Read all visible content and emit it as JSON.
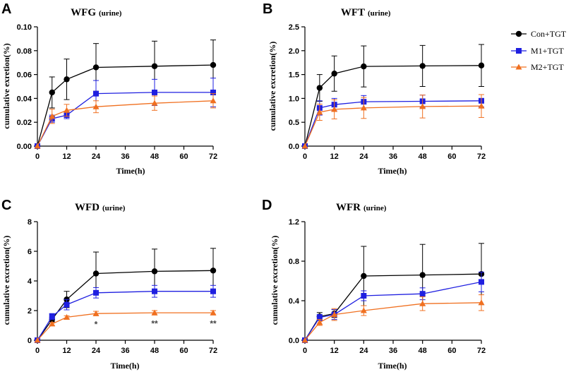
{
  "series_style": {
    "Con+TGT": {
      "color": "#000000",
      "marker": "circle"
    },
    "M1+TGT": {
      "color": "#1f1fe0",
      "marker": "square"
    },
    "M2+TGT": {
      "color": "#f07020",
      "marker": "triangle"
    }
  },
  "legend": {
    "placement": "right-of-panel-B",
    "items": [
      "Con+TGT",
      "M1+TGT",
      "M2+TGT"
    ]
  },
  "chart_data": [
    {
      "panel": "A",
      "type": "line",
      "title": "WFG",
      "title_suffix": "(urine)",
      "xlabel": "Time(h)",
      "ylabel": "cumulative exretion(%)",
      "x": [
        0,
        6,
        12,
        24,
        48,
        72
      ],
      "xticks": [
        "0",
        "12",
        "24",
        "36",
        "48",
        "60",
        "72"
      ],
      "xlim": [
        0,
        72
      ],
      "ylim": [
        0,
        0.1
      ],
      "yticks": [
        "0.00",
        "0.02",
        "0.04",
        "0.06",
        "0.08",
        "0.10"
      ],
      "series": [
        {
          "name": "Con+TGT",
          "values": [
            0,
            0.045,
            0.056,
            0.066,
            0.067,
            0.068
          ],
          "errors": [
            0,
            0.013,
            0.017,
            0.02,
            0.021,
            0.021
          ]
        },
        {
          "name": "M1+TGT",
          "values": [
            0,
            0.023,
            0.026,
            0.044,
            0.045,
            0.045
          ],
          "errors": [
            0,
            0.003,
            0.003,
            0.011,
            0.011,
            0.012
          ]
        },
        {
          "name": "M2+TGT",
          "values": [
            0,
            0.025,
            0.03,
            0.033,
            0.036,
            0.038
          ],
          "errors": [
            0,
            0.006,
            0.005,
            0.005,
            0.006,
            0.006
          ]
        }
      ],
      "annotations": []
    },
    {
      "panel": "B",
      "type": "line",
      "title": "WFT",
      "title_suffix": "(urine)",
      "xlabel": "Time(h)",
      "ylabel": "cumulative excretion(%)",
      "x": [
        0,
        6,
        12,
        24,
        48,
        72
      ],
      "xticks": [
        "0",
        "12",
        "24",
        "36",
        "48",
        "60",
        "72"
      ],
      "xlim": [
        0,
        72
      ],
      "ylim": [
        0,
        2.5
      ],
      "yticks": [
        "0.0",
        "0.5",
        "1.0",
        "1.5",
        "2.0",
        "2.5"
      ],
      "series": [
        {
          "name": "Con+TGT",
          "values": [
            0,
            1.22,
            1.52,
            1.67,
            1.68,
            1.69
          ],
          "errors": [
            0,
            0.28,
            0.37,
            0.43,
            0.43,
            0.44
          ]
        },
        {
          "name": "M1+TGT",
          "values": [
            0,
            0.8,
            0.87,
            0.93,
            0.94,
            0.95
          ],
          "errors": [
            0,
            0.15,
            0.13,
            0.13,
            0.13,
            0.13
          ]
        },
        {
          "name": "M2+TGT",
          "values": [
            0,
            0.71,
            0.77,
            0.8,
            0.83,
            0.84
          ],
          "errors": [
            0,
            0.17,
            0.2,
            0.22,
            0.24,
            0.24
          ]
        }
      ],
      "annotations": []
    },
    {
      "panel": "C",
      "type": "line",
      "title": "WFD",
      "title_suffix": "(urine)",
      "xlabel": "Time(h)",
      "ylabel": "cumulative excretion(%)",
      "x": [
        0,
        6,
        12,
        24,
        48,
        72
      ],
      "xticks": [
        "0",
        "12",
        "24",
        "36",
        "48",
        "60",
        "72"
      ],
      "xlim": [
        0,
        72
      ],
      "ylim": [
        0,
        8
      ],
      "yticks": [
        "0",
        "2",
        "4",
        "6",
        "8"
      ],
      "series": [
        {
          "name": "Con+TGT",
          "values": [
            0,
            1.4,
            2.75,
            4.5,
            4.65,
            4.7
          ],
          "errors": [
            0,
            0.15,
            0.55,
            1.45,
            1.5,
            1.5
          ]
        },
        {
          "name": "M1+TGT",
          "values": [
            0,
            1.6,
            2.4,
            3.2,
            3.3,
            3.3
          ],
          "errors": [
            0,
            0.2,
            0.35,
            0.35,
            0.4,
            0.4
          ]
        },
        {
          "name": "M2+TGT",
          "values": [
            0,
            1.1,
            1.55,
            1.8,
            1.85,
            1.85
          ],
          "errors": [
            0,
            0.1,
            0.1,
            0.15,
            0.15,
            0.15
          ]
        }
      ],
      "annotations": [
        {
          "x": 24,
          "text": "*"
        },
        {
          "x": 48,
          "text": "**"
        },
        {
          "x": 72,
          "text": "**"
        }
      ]
    },
    {
      "panel": "D",
      "type": "line",
      "title": "WFR",
      "title_suffix": "(urine)",
      "xlabel": "Time(h)",
      "ylabel": "cumulative excretion(%)",
      "x": [
        0,
        6,
        12,
        24,
        48,
        72
      ],
      "xticks": [
        "0",
        "12",
        "24",
        "36",
        "48",
        "60",
        "72"
      ],
      "xlim": [
        0,
        72
      ],
      "ylim": [
        0,
        1.2
      ],
      "yticks": [
        "0.0",
        "0.4",
        "0.8",
        "1.2"
      ],
      "series": [
        {
          "name": "Con+TGT",
          "values": [
            0,
            0.24,
            0.27,
            0.65,
            0.66,
            0.67
          ],
          "errors": [
            0,
            0.04,
            0.04,
            0.3,
            0.31,
            0.31
          ]
        },
        {
          "name": "M1+TGT",
          "values": [
            0,
            0.23,
            0.26,
            0.45,
            0.47,
            0.59
          ],
          "errors": [
            0,
            0.03,
            0.05,
            0.05,
            0.06,
            0.1
          ]
        },
        {
          "name": "M2+TGT",
          "values": [
            0,
            0.18,
            0.26,
            0.3,
            0.37,
            0.38
          ],
          "errors": [
            0,
            0.03,
            0.06,
            0.05,
            0.07,
            0.08
          ]
        }
      ],
      "annotations": []
    }
  ]
}
